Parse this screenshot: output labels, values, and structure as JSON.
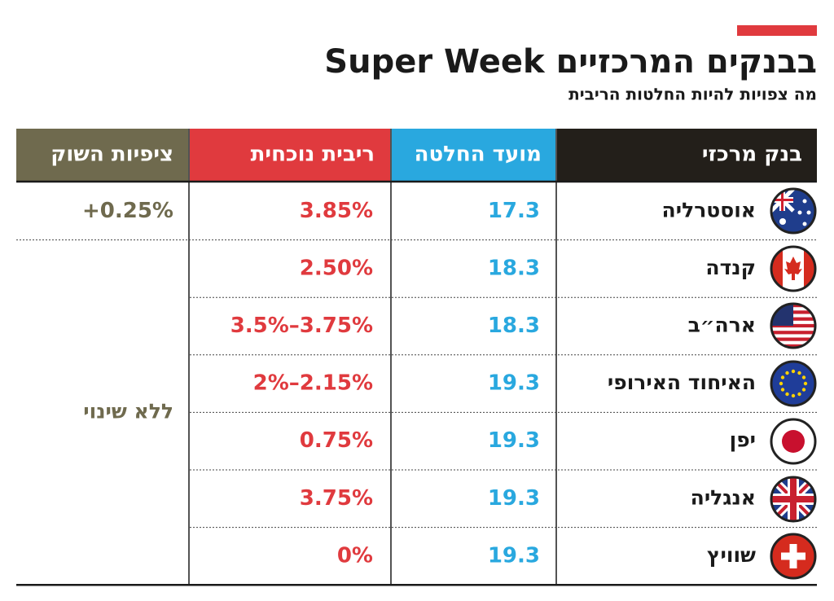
{
  "header": {
    "title": "Super Week בבנקים המרכזיים",
    "subtitle": "מה צפויות להיות החלטות הריבית"
  },
  "table": {
    "columns": [
      "בנק מרכזי",
      "מועד החלטה",
      "ריבית נוכחית",
      "ציפיות השוק"
    ],
    "rows": [
      [
        "אוסטרליה",
        "17.3",
        "3.85%"
      ],
      [
        "קנדה",
        "18.3",
        "2.50%"
      ],
      [
        "ארה״ב",
        "18.3",
        "3.5%–3.75%"
      ],
      [
        "האיחוד האירופי",
        "19.3",
        "2%–2.15%"
      ],
      [
        "יפן",
        "19.3",
        "0.75%"
      ],
      [
        "אנגליה",
        "19.3",
        "3.75%"
      ],
      [
        "שוויץ",
        "19.3",
        "0%"
      ]
    ],
    "expectations": [
      "+0.25%",
      "ללא שינוי"
    ]
  }
}
